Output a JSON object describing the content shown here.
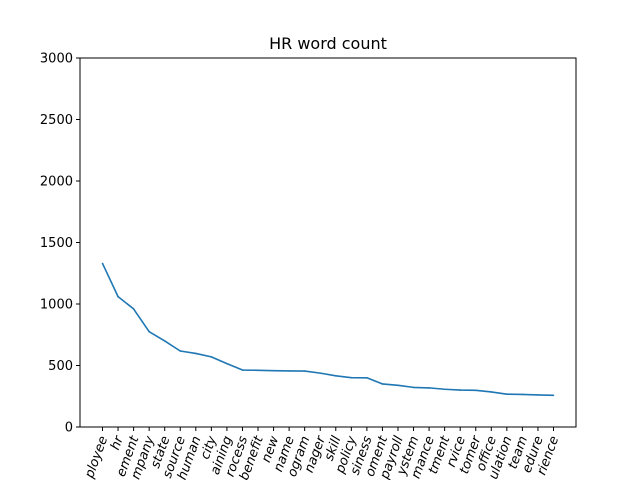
{
  "chart_data": {
    "type": "line",
    "title": "HR word count",
    "xlabel": "",
    "ylabel": "",
    "ylim": [
      0,
      3000
    ],
    "yticks": [
      0,
      500,
      1000,
      1500,
      2000,
      2500,
      3000
    ],
    "grid": false,
    "line_color": "#1f77b4",
    "categories": [
      "ployee",
      "hr",
      "ement",
      "mpany",
      "state",
      "source",
      "human",
      "city",
      "aining",
      "rocess",
      "benefit",
      "new",
      "name",
      "ogram",
      "nager",
      "skill",
      "policy",
      "siness",
      "oment",
      "payroll",
      "ystem",
      "mance",
      "tment",
      "rvice",
      "tomer",
      "office",
      "ulation",
      "team",
      "edure",
      "rience"
    ],
    "values": [
      1330,
      1060,
      960,
      775,
      700,
      618,
      598,
      570,
      515,
      463,
      461,
      458,
      456,
      455,
      438,
      416,
      401,
      400,
      350,
      339,
      322,
      318,
      307,
      300,
      298,
      285,
      267,
      265,
      261,
      258
    ]
  }
}
